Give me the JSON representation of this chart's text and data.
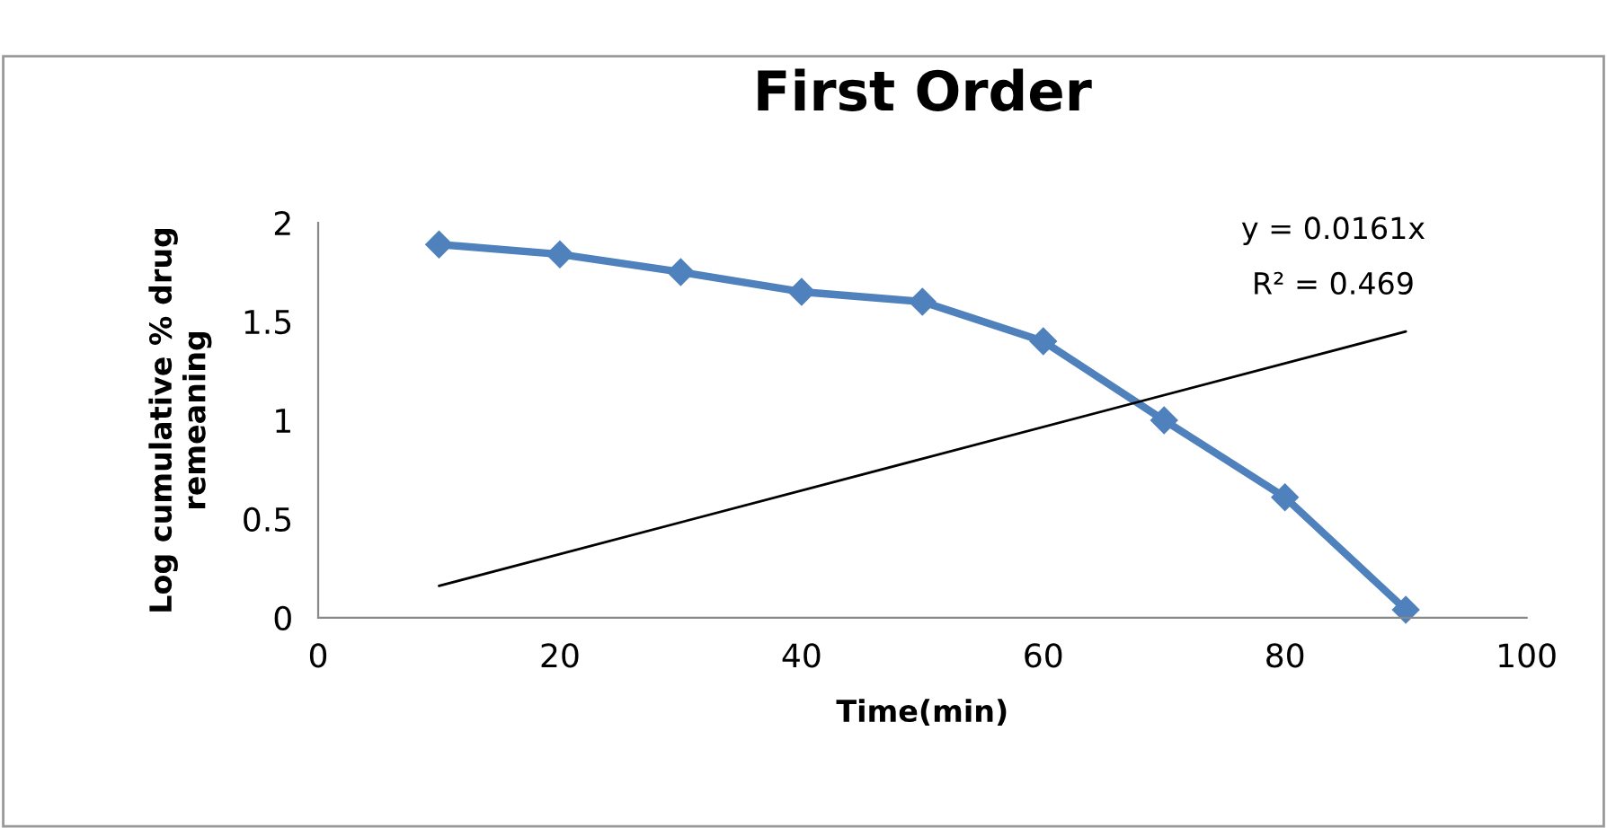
{
  "chart_data": {
    "type": "line",
    "title": "First Order",
    "xlabel": "Time(min)",
    "ylabel": "Log cumulative % drug\nremeaning",
    "x": [
      10,
      20,
      30,
      40,
      50,
      60,
      70,
      80,
      90
    ],
    "series": [
      {
        "color": "#4f81bd",
        "marker": "diamond",
        "values": [
          1.89,
          1.84,
          1.75,
          1.65,
          1.6,
          1.4,
          1.0,
          0.61,
          0.04
        ]
      },
      {
        "color": "#000000",
        "marker": "none",
        "x": [
          10,
          90
        ],
        "values": [
          0.161,
          1.449
        ]
      }
    ],
    "annotations": [
      "y = 0.0161x",
      "R² = 0.469"
    ],
    "xlim": [
      0,
      100
    ],
    "xticks": [
      0,
      20,
      40,
      60,
      80,
      100
    ],
    "ylim": [
      0,
      2
    ],
    "yticks": [
      0,
      0.5,
      1,
      1.5,
      2
    ],
    "line_style": "solid"
  }
}
